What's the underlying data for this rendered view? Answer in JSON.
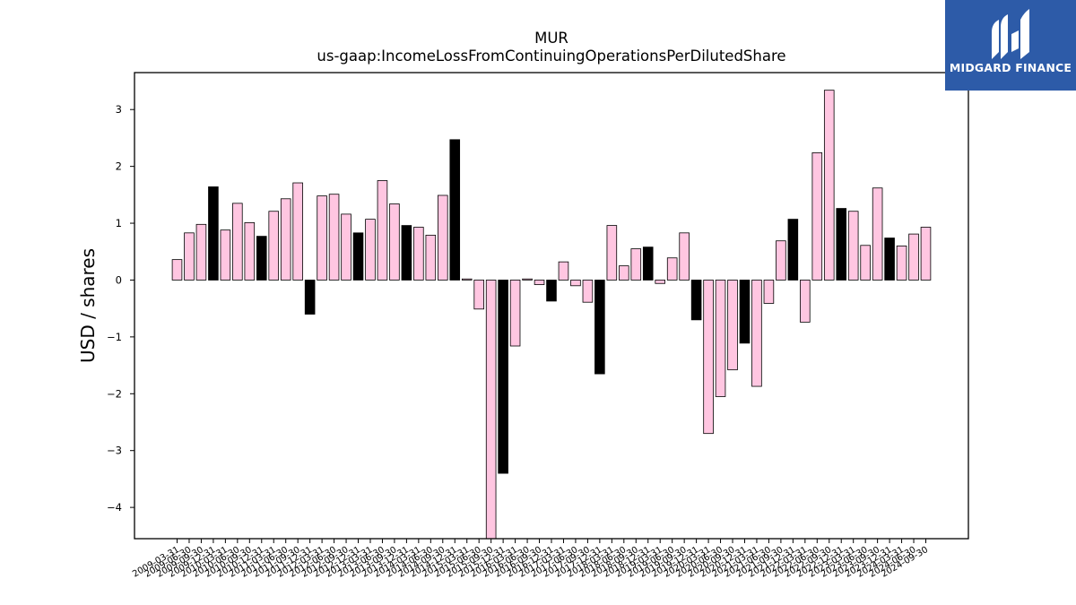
{
  "logo": {
    "name": "MIDGARD FINANCE",
    "icon": "midgard-logo-icon"
  },
  "colors": {
    "highlight": "#000000",
    "normal": "#ffc6e1",
    "edge": "#000000"
  },
  "chart_data": {
    "type": "bar",
    "title": "MUR",
    "subtitle": "us-gaap:IncomeLossFromContinuingOperationsPerDilutedShare",
    "xlabel": "",
    "ylabel": "USD / shares",
    "ylim": [
      -4.55,
      3.65
    ],
    "yticks": [
      3,
      2,
      1,
      0,
      -1,
      -2,
      -3,
      -4
    ],
    "ytick_labels": [
      "3",
      "2",
      "1",
      "0",
      "−1",
      "−2",
      "−3",
      "−4"
    ],
    "grid": false,
    "categories": [
      "2009-03-31",
      "2009-06-30",
      "2009-09-30",
      "2009-12-31",
      "2010-03-31",
      "2010-06-30",
      "2010-09-30",
      "2010-12-31",
      "2011-03-31",
      "2011-06-30",
      "2011-09-30",
      "2011-12-31",
      "2012-03-31",
      "2012-06-30",
      "2012-09-30",
      "2012-12-31",
      "2013-03-31",
      "2013-06-30",
      "2013-09-30",
      "2013-12-31",
      "2014-03-31",
      "2014-06-30",
      "2014-09-30",
      "2014-12-31",
      "2015-03-31",
      "2015-06-30",
      "2015-09-30",
      "2015-12-31",
      "2016-03-31",
      "2016-06-30",
      "2016-09-30",
      "2016-12-31",
      "2017-03-31",
      "2017-06-30",
      "2017-09-30",
      "2017-12-31",
      "2018-03-31",
      "2018-06-30",
      "2018-09-30",
      "2018-12-31",
      "2019-03-31",
      "2019-06-30",
      "2019-09-30",
      "2019-12-31",
      "2020-03-31",
      "2020-06-30",
      "2020-09-30",
      "2020-12-31",
      "2021-03-31",
      "2021-06-30",
      "2021-09-30",
      "2021-12-31",
      "2022-03-31",
      "2022-06-30",
      "2022-09-30",
      "2022-12-31",
      "2023-03-31",
      "2023-06-30",
      "2023-09-30",
      "2023-12-31",
      "2024-03-31",
      "2024-06-30",
      "2024-09-30"
    ],
    "xtick_labels": [
      "2009-03-31",
      "2009-06-30",
      "2009-09-30",
      "2009-12-31",
      "2010-03-31",
      "2010-06-30",
      "2010-09-30",
      "2010-12-31",
      "2011-03-31",
      "2011-06-30",
      "2011-09-30",
      "2011-12-31",
      "2012-03-31",
      "2012-06-30",
      "2012-09-30",
      "2012-12-31",
      "2013-03-31",
      "2013-06-30",
      "2013-09-30",
      "2013-12-31",
      "2014-03-31",
      "2014-06-30",
      "2014-09-30",
      "2014-12-31",
      "2015-03-31",
      "2015-06-30",
      "2015-09-30",
      "2015-12-31",
      "2016-03-31",
      "2016-06-30",
      "2016-09-30",
      "2016-12-31",
      "2017-03-31",
      "2017-06-30",
      "2017-09-30",
      "2017-12-31",
      "2018-03-31",
      "2018-06-30",
      "2018-09-30",
      "2018-12-31",
      "2019-03-31",
      "2019-06-30",
      "2019-09-30",
      "2019-12-31",
      "2020-03-31",
      "2020-06-30",
      "2020-09-30",
      "2020-12-31",
      "2021-03-31",
      "2021-06-30",
      "2021-09-30",
      "2021-12-31",
      "2022-03-31",
      "2022-06-30",
      "2022-09-30",
      "2022-12-31",
      "2023-03-31",
      "2023-06-30",
      "2023-09-30",
      "2023-12-31",
      "2024-03-31",
      "2024-06-30",
      "2024-09-30"
    ],
    "values": [
      0.36,
      0.83,
      0.98,
      1.64,
      0.88,
      1.35,
      1.01,
      0.77,
      1.21,
      1.43,
      1.71,
      -0.6,
      1.48,
      1.51,
      1.16,
      0.83,
      1.07,
      1.75,
      1.34,
      0.96,
      0.93,
      0.79,
      1.49,
      2.47,
      0.02,
      -0.51,
      -4.55,
      -3.4,
      -1.16,
      0.02,
      -0.08,
      -0.37,
      0.32,
      -0.1,
      -0.39,
      -1.65,
      0.96,
      0.25,
      0.55,
      0.58,
      -0.06,
      0.39,
      0.83,
      -0.7,
      -2.7,
      -2.05,
      -1.58,
      -1.11,
      -1.87,
      -0.41,
      0.69,
      1.07,
      -0.74,
      2.24,
      3.34,
      1.26,
      1.21,
      0.61,
      1.62,
      0.74,
      0.6,
      0.81,
      0.93
    ],
    "highlighted": [
      3,
      7,
      11,
      15,
      19,
      23,
      27,
      31,
      35,
      39,
      43,
      47,
      51,
      55,
      59
    ]
  }
}
